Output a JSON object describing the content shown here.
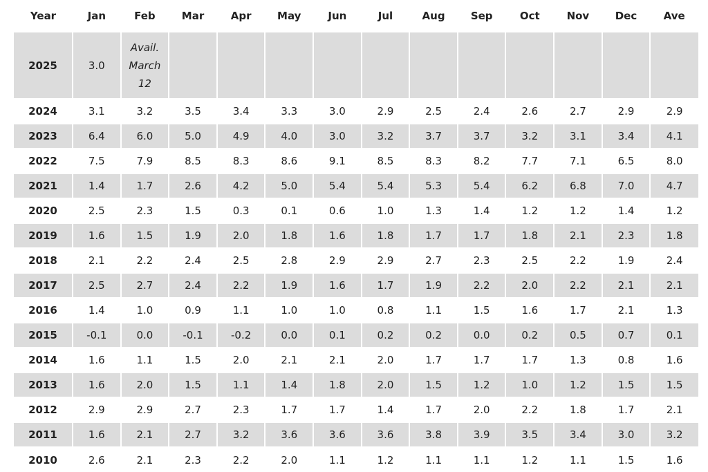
{
  "table": {
    "header": [
      "Year",
      "Jan",
      "Feb",
      "Mar",
      "Apr",
      "May",
      "Jun",
      "Jul",
      "Aug",
      "Sep",
      "Oct",
      "Nov",
      "Dec",
      "Ave"
    ],
    "rows": [
      [
        "2025",
        "3.0",
        "Avail. March 12",
        null,
        null,
        null,
        null,
        null,
        null,
        null,
        null,
        null,
        null,
        null
      ],
      [
        "2024",
        "3.1",
        "3.2",
        "3.5",
        "3.4",
        "3.3",
        "3.0",
        "2.9",
        "2.5",
        "2.4",
        "2.6",
        "2.7",
        "2.9",
        "2.9"
      ],
      [
        "2023",
        "6.4",
        "6.0",
        "5.0",
        "4.9",
        "4.0",
        "3.0",
        "3.2",
        "3.7",
        "3.7",
        "3.2",
        "3.1",
        "3.4",
        "4.1"
      ],
      [
        "2022",
        "7.5",
        "7.9",
        "8.5",
        "8.3",
        "8.6",
        "9.1",
        "8.5",
        "8.3",
        "8.2",
        "7.7",
        "7.1",
        "6.5",
        "8.0"
      ],
      [
        "2021",
        "1.4",
        "1.7",
        "2.6",
        "4.2",
        "5.0",
        "5.4",
        "5.4",
        "5.3",
        "5.4",
        "6.2",
        "6.8",
        "7.0",
        "4.7"
      ],
      [
        "2020",
        "2.5",
        "2.3",
        "1.5",
        "0.3",
        "0.1",
        "0.6",
        "1.0",
        "1.3",
        "1.4",
        "1.2",
        "1.2",
        "1.4",
        "1.2"
      ],
      [
        "2019",
        "1.6",
        "1.5",
        "1.9",
        "2.0",
        "1.8",
        "1.6",
        "1.8",
        "1.7",
        "1.7",
        "1.8",
        "2.1",
        "2.3",
        "1.8"
      ],
      [
        "2018",
        "2.1",
        "2.2",
        "2.4",
        "2.5",
        "2.8",
        "2.9",
        "2.9",
        "2.7",
        "2.3",
        "2.5",
        "2.2",
        "1.9",
        "2.4"
      ],
      [
        "2017",
        "2.5",
        "2.7",
        "2.4",
        "2.2",
        "1.9",
        "1.6",
        "1.7",
        "1.9",
        "2.2",
        "2.0",
        "2.2",
        "2.1",
        "2.1"
      ],
      [
        "2016",
        "1.4",
        "1.0",
        "0.9",
        "1.1",
        "1.0",
        "1.0",
        "0.8",
        "1.1",
        "1.5",
        "1.6",
        "1.7",
        "2.1",
        "1.3"
      ],
      [
        "2015",
        "-0.1",
        "0.0",
        "-0.1",
        "-0.2",
        "0.0",
        "0.1",
        "0.2",
        "0.2",
        "0.0",
        "0.2",
        "0.5",
        "0.7",
        "0.1"
      ],
      [
        "2014",
        "1.6",
        "1.1",
        "1.5",
        "2.0",
        "2.1",
        "2.1",
        "2.0",
        "1.7",
        "1.7",
        "1.7",
        "1.3",
        "0.8",
        "1.6"
      ],
      [
        "2013",
        "1.6",
        "2.0",
        "1.5",
        "1.1",
        "1.4",
        "1.8",
        "2.0",
        "1.5",
        "1.2",
        "1.0",
        "1.2",
        "1.5",
        "1.5"
      ],
      [
        "2012",
        "2.9",
        "2.9",
        "2.7",
        "2.3",
        "1.7",
        "1.7",
        "1.4",
        "1.7",
        "2.0",
        "2.2",
        "1.8",
        "1.7",
        "2.1"
      ],
      [
        "2011",
        "1.6",
        "2.1",
        "2.7",
        "3.2",
        "3.6",
        "3.6",
        "3.6",
        "3.8",
        "3.9",
        "3.5",
        "3.4",
        "3.0",
        "3.2"
      ],
      [
        "2010",
        "2.6",
        "2.1",
        "2.3",
        "2.2",
        "2.0",
        "1.1",
        "1.2",
        "1.1",
        "1.1",
        "1.2",
        "1.1",
        "1.5",
        "1.6"
      ]
    ]
  }
}
